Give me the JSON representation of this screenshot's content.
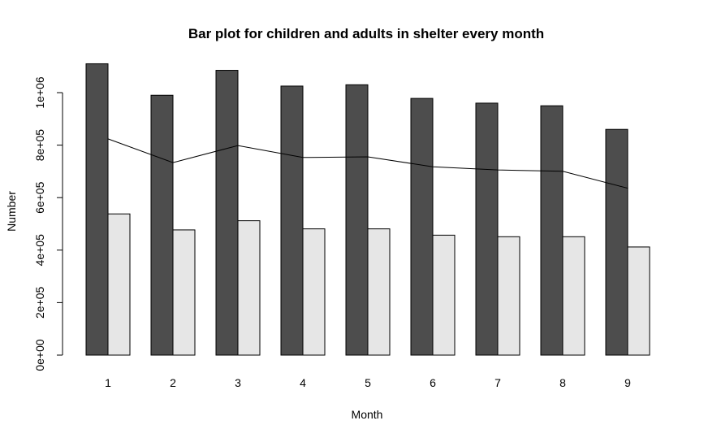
{
  "chart_data": {
    "type": "bar",
    "title": "Bar plot for children and adults in shelter every month",
    "xlabel": "Month",
    "ylabel": "Number",
    "categories": [
      "1",
      "2",
      "3",
      "4",
      "5",
      "6",
      "7",
      "8",
      "9"
    ],
    "ylim": [
      0,
      1100000
    ],
    "yticks": [
      0,
      200000,
      400000,
      600000,
      800000,
      1000000
    ],
    "ytick_labels": [
      "0e+00",
      "2e+05",
      "4e+05",
      "6e+05",
      "8e+05",
      "1e+06"
    ],
    "grid": false,
    "legend": "none",
    "series": [
      {
        "values": [
          1110000,
          990000,
          1085000,
          1025000,
          1030000,
          978000,
          960000,
          950000,
          860000
        ],
        "color": "#4d4d4d",
        "kind": "bar"
      },
      {
        "values": [
          538000,
          477000,
          512000,
          481000,
          481000,
          457000,
          451000,
          451000,
          412000
        ],
        "color": "#e6e6e6",
        "kind": "bar"
      },
      {
        "values": [
          824000,
          733500,
          798500,
          753000,
          755500,
          717500,
          705500,
          700500,
          636000
        ],
        "color": "#000000",
        "kind": "line"
      }
    ]
  }
}
